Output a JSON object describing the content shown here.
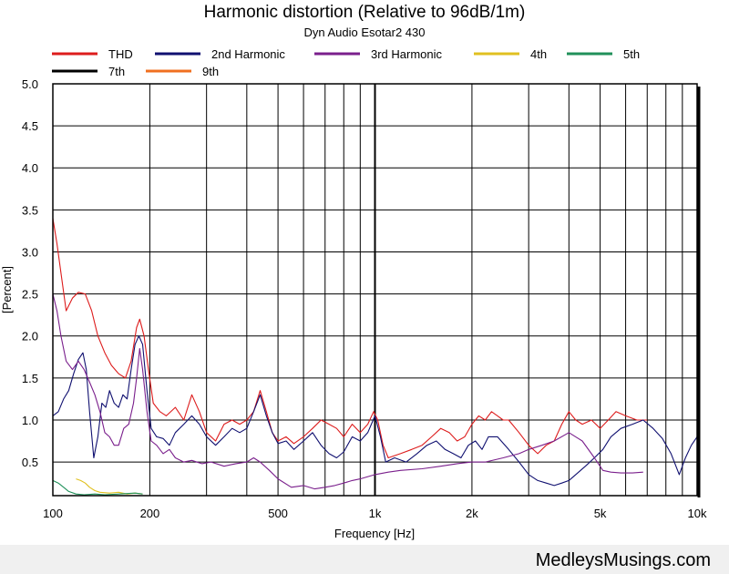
{
  "footer": {
    "watermark": "MedleysMusings.com"
  },
  "chart_data": {
    "type": "line",
    "title": "Harmonic distortion (Relative to 96dB/1m)",
    "subtitle": "Dyn Audio Esotar2 430",
    "xlabel": "Frequency [Hz]",
    "ylabel": "[Percent]",
    "x_scale": "log",
    "xlim": [
      100,
      10000
    ],
    "ylim": [
      0.1,
      5.0
    ],
    "x_ticks": [
      {
        "value": 100,
        "label": "100"
      },
      {
        "value": 200,
        "label": "200"
      },
      {
        "value": 500,
        "label": "500"
      },
      {
        "value": 1000,
        "label": "1k"
      },
      {
        "value": 2000,
        "label": "2k"
      },
      {
        "value": 5000,
        "label": "5k"
      },
      {
        "value": 10000,
        "label": "10k"
      }
    ],
    "y_ticks": [
      {
        "value": 0.5,
        "label": "0.5"
      },
      {
        "value": 1.0,
        "label": "1.0"
      },
      {
        "value": 1.5,
        "label": "1.5"
      },
      {
        "value": 2.0,
        "label": "2.0"
      },
      {
        "value": 2.5,
        "label": "2.5"
      },
      {
        "value": 3.0,
        "label": "3.0"
      },
      {
        "value": 3.5,
        "label": "3.5"
      },
      {
        "value": 4.0,
        "label": "4.0"
      },
      {
        "value": 4.5,
        "label": "4.5"
      },
      {
        "value": 5.0,
        "label": "5.0"
      }
    ],
    "grid": true,
    "legend_position": "top",
    "series": [
      {
        "name": "THD",
        "color": "#dd1c1c",
        "points": [
          [
            100,
            3.4
          ],
          [
            103,
            3.1
          ],
          [
            106,
            2.75
          ],
          [
            110,
            2.3
          ],
          [
            115,
            2.45
          ],
          [
            120,
            2.52
          ],
          [
            126,
            2.5
          ],
          [
            132,
            2.3
          ],
          [
            138,
            2.0
          ],
          [
            145,
            1.8
          ],
          [
            152,
            1.65
          ],
          [
            160,
            1.55
          ],
          [
            168,
            1.5
          ],
          [
            175,
            1.7
          ],
          [
            182,
            2.1
          ],
          [
            186,
            2.2
          ],
          [
            192,
            2.0
          ],
          [
            198,
            1.6
          ],
          [
            205,
            1.2
          ],
          [
            215,
            1.1
          ],
          [
            225,
            1.05
          ],
          [
            240,
            1.15
          ],
          [
            255,
            1.0
          ],
          [
            270,
            1.3
          ],
          [
            285,
            1.1
          ],
          [
            300,
            0.85
          ],
          [
            320,
            0.75
          ],
          [
            340,
            0.95
          ],
          [
            360,
            1.0
          ],
          [
            380,
            0.95
          ],
          [
            400,
            1.0
          ],
          [
            420,
            1.1
          ],
          [
            440,
            1.35
          ],
          [
            460,
            1.1
          ],
          [
            480,
            0.85
          ],
          [
            500,
            0.75
          ],
          [
            530,
            0.8
          ],
          [
            560,
            0.72
          ],
          [
            600,
            0.8
          ],
          [
            640,
            0.9
          ],
          [
            680,
            1.0
          ],
          [
            720,
            0.95
          ],
          [
            760,
            0.9
          ],
          [
            800,
            0.8
          ],
          [
            850,
            0.95
          ],
          [
            900,
            0.85
          ],
          [
            950,
            0.95
          ],
          [
            990,
            1.1
          ],
          [
            1020,
            1.0
          ],
          [
            1060,
            0.7
          ],
          [
            1100,
            0.55
          ],
          [
            1200,
            0.6
          ],
          [
            1300,
            0.65
          ],
          [
            1400,
            0.7
          ],
          [
            1500,
            0.8
          ],
          [
            1600,
            0.9
          ],
          [
            1700,
            0.85
          ],
          [
            1800,
            0.75
          ],
          [
            1900,
            0.8
          ],
          [
            2000,
            0.95
          ],
          [
            2100,
            1.05
          ],
          [
            2200,
            1.0
          ],
          [
            2300,
            1.1
          ],
          [
            2400,
            1.05
          ],
          [
            2500,
            1.0
          ],
          [
            2600,
            1.0
          ],
          [
            2800,
            0.85
          ],
          [
            3000,
            0.7
          ],
          [
            3200,
            0.6
          ],
          [
            3400,
            0.7
          ],
          [
            3600,
            0.75
          ],
          [
            3800,
            0.95
          ],
          [
            4000,
            1.1
          ],
          [
            4200,
            1.0
          ],
          [
            4400,
            0.95
          ],
          [
            4700,
            1.0
          ],
          [
            5000,
            0.9
          ],
          [
            5300,
            1.0
          ],
          [
            5600,
            1.1
          ],
          [
            6000,
            1.05
          ],
          [
            6500,
            1.0
          ],
          [
            7000,
            1.0
          ]
        ]
      },
      {
        "name": "2nd Harmonic",
        "color": "#101070",
        "points": [
          [
            100,
            1.05
          ],
          [
            104,
            1.1
          ],
          [
            108,
            1.25
          ],
          [
            112,
            1.35
          ],
          [
            116,
            1.55
          ],
          [
            120,
            1.72
          ],
          [
            124,
            1.8
          ],
          [
            127,
            1.6
          ],
          [
            130,
            1.1
          ],
          [
            134,
            0.55
          ],
          [
            138,
            0.8
          ],
          [
            142,
            1.2
          ],
          [
            146,
            1.15
          ],
          [
            150,
            1.35
          ],
          [
            155,
            1.2
          ],
          [
            160,
            1.15
          ],
          [
            165,
            1.3
          ],
          [
            170,
            1.25
          ],
          [
            175,
            1.6
          ],
          [
            180,
            1.9
          ],
          [
            185,
            2.0
          ],
          [
            190,
            1.9
          ],
          [
            196,
            1.35
          ],
          [
            202,
            0.9
          ],
          [
            210,
            0.8
          ],
          [
            220,
            0.78
          ],
          [
            230,
            0.7
          ],
          [
            240,
            0.85
          ],
          [
            255,
            0.95
          ],
          [
            270,
            1.05
          ],
          [
            285,
            0.95
          ],
          [
            300,
            0.8
          ],
          [
            320,
            0.7
          ],
          [
            340,
            0.8
          ],
          [
            360,
            0.9
          ],
          [
            380,
            0.85
          ],
          [
            400,
            0.9
          ],
          [
            420,
            1.1
          ],
          [
            440,
            1.3
          ],
          [
            460,
            1.05
          ],
          [
            480,
            0.85
          ],
          [
            500,
            0.72
          ],
          [
            530,
            0.75
          ],
          [
            560,
            0.65
          ],
          [
            600,
            0.75
          ],
          [
            640,
            0.85
          ],
          [
            680,
            0.7
          ],
          [
            720,
            0.6
          ],
          [
            760,
            0.55
          ],
          [
            800,
            0.62
          ],
          [
            850,
            0.8
          ],
          [
            900,
            0.75
          ],
          [
            950,
            0.85
          ],
          [
            1000,
            1.05
          ],
          [
            1040,
            0.8
          ],
          [
            1080,
            0.5
          ],
          [
            1150,
            0.55
          ],
          [
            1250,
            0.5
          ],
          [
            1350,
            0.6
          ],
          [
            1450,
            0.7
          ],
          [
            1550,
            0.75
          ],
          [
            1650,
            0.65
          ],
          [
            1750,
            0.6
          ],
          [
            1850,
            0.55
          ],
          [
            1950,
            0.7
          ],
          [
            2050,
            0.75
          ],
          [
            2150,
            0.65
          ],
          [
            2250,
            0.8
          ],
          [
            2400,
            0.8
          ],
          [
            2600,
            0.65
          ],
          [
            2800,
            0.5
          ],
          [
            3000,
            0.35
          ],
          [
            3200,
            0.28
          ],
          [
            3400,
            0.25
          ],
          [
            3600,
            0.22
          ],
          [
            3800,
            0.25
          ],
          [
            4000,
            0.28
          ],
          [
            4200,
            0.35
          ],
          [
            4500,
            0.45
          ],
          [
            4800,
            0.55
          ],
          [
            5100,
            0.65
          ],
          [
            5400,
            0.8
          ],
          [
            5800,
            0.9
          ],
          [
            6300,
            0.95
          ],
          [
            6800,
            1.0
          ],
          [
            7300,
            0.9
          ],
          [
            7800,
            0.78
          ],
          [
            8300,
            0.6
          ],
          [
            8800,
            0.35
          ],
          [
            9200,
            0.55
          ],
          [
            9600,
            0.7
          ],
          [
            10000,
            0.8
          ]
        ]
      },
      {
        "name": "3rd Harmonic",
        "color": "#7a1f8c",
        "points": [
          [
            100,
            2.5
          ],
          [
            103,
            2.3
          ],
          [
            106,
            2.0
          ],
          [
            110,
            1.7
          ],
          [
            115,
            1.6
          ],
          [
            120,
            1.7
          ],
          [
            125,
            1.6
          ],
          [
            130,
            1.45
          ],
          [
            135,
            1.3
          ],
          [
            140,
            1.1
          ],
          [
            145,
            0.85
          ],
          [
            150,
            0.8
          ],
          [
            155,
            0.7
          ],
          [
            160,
            0.7
          ],
          [
            166,
            0.9
          ],
          [
            172,
            0.95
          ],
          [
            178,
            1.2
          ],
          [
            182,
            1.5
          ],
          [
            186,
            1.85
          ],
          [
            190,
            1.6
          ],
          [
            196,
            1.1
          ],
          [
            202,
            0.75
          ],
          [
            210,
            0.7
          ],
          [
            220,
            0.6
          ],
          [
            230,
            0.65
          ],
          [
            240,
            0.55
          ],
          [
            255,
            0.5
          ],
          [
            270,
            0.52
          ],
          [
            290,
            0.48
          ],
          [
            310,
            0.5
          ],
          [
            340,
            0.45
          ],
          [
            370,
            0.48
          ],
          [
            400,
            0.5
          ],
          [
            420,
            0.55
          ],
          [
            440,
            0.5
          ],
          [
            470,
            0.4
          ],
          [
            500,
            0.3
          ],
          [
            550,
            0.2
          ],
          [
            600,
            0.22
          ],
          [
            650,
            0.18
          ],
          [
            700,
            0.2
          ],
          [
            750,
            0.22
          ],
          [
            800,
            0.25
          ],
          [
            850,
            0.28
          ],
          [
            900,
            0.3
          ],
          [
            1000,
            0.35
          ],
          [
            1100,
            0.38
          ],
          [
            1200,
            0.4
          ],
          [
            1400,
            0.42
          ],
          [
            1600,
            0.45
          ],
          [
            1800,
            0.48
          ],
          [
            2000,
            0.5
          ],
          [
            2200,
            0.5
          ],
          [
            2500,
            0.55
          ],
          [
            2800,
            0.6
          ],
          [
            3000,
            0.65
          ],
          [
            3300,
            0.7
          ],
          [
            3600,
            0.75
          ],
          [
            4000,
            0.85
          ],
          [
            4400,
            0.75
          ],
          [
            4800,
            0.55
          ],
          [
            5100,
            0.4
          ],
          [
            5400,
            0.38
          ],
          [
            5800,
            0.37
          ],
          [
            6300,
            0.37
          ],
          [
            6800,
            0.38
          ]
        ]
      },
      {
        "name": "4th",
        "color": "#e0c020",
        "points": [
          [
            118,
            0.3
          ],
          [
            122,
            0.28
          ],
          [
            126,
            0.25
          ],
          [
            130,
            0.2
          ],
          [
            135,
            0.16
          ],
          [
            140,
            0.14
          ],
          [
            150,
            0.13
          ],
          [
            160,
            0.14
          ],
          [
            170,
            0.12
          ],
          [
            180,
            0.13
          ],
          [
            190,
            0.12
          ]
        ]
      },
      {
        "name": "5th",
        "color": "#20905a",
        "points": [
          [
            100,
            0.28
          ],
          [
            104,
            0.25
          ],
          [
            108,
            0.2
          ],
          [
            112,
            0.15
          ],
          [
            118,
            0.12
          ],
          [
            125,
            0.11
          ],
          [
            135,
            0.12
          ],
          [
            145,
            0.11
          ],
          [
            160,
            0.12
          ],
          [
            180,
            0.13
          ],
          [
            190,
            0.12
          ]
        ]
      },
      {
        "name": "7th",
        "color": "#000000",
        "points": []
      },
      {
        "name": "9th",
        "color": "#f07020",
        "points": []
      }
    ]
  }
}
